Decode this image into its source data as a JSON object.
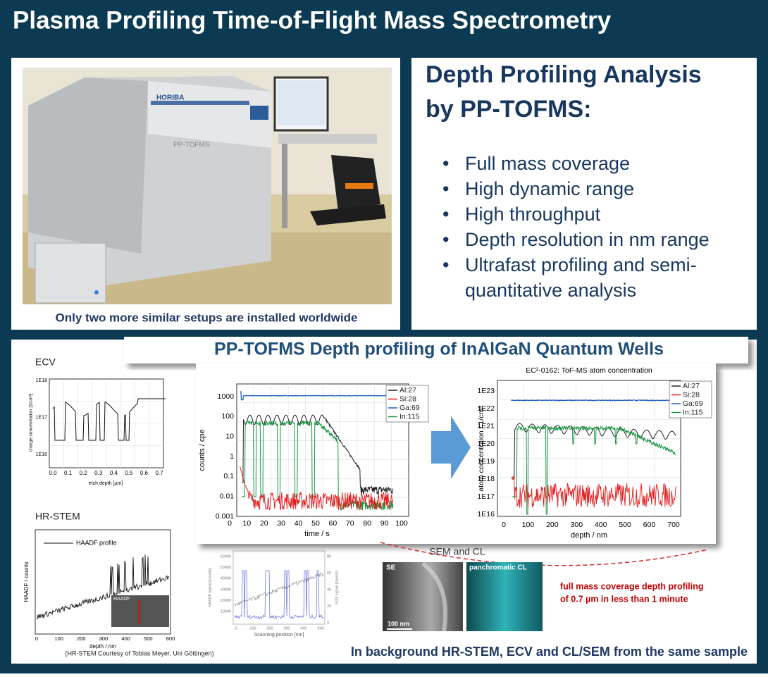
{
  "header": {
    "title": "Plasma Profiling Time-of-Flight Mass Spectrometry"
  },
  "photo": {
    "brand": "HORIBA",
    "model": "PP-TOFMS",
    "caption": "Only two more similar setups are installed worldwide"
  },
  "analysis": {
    "title_lines": [
      "Depth Profiling Analysis",
      "by PP-TOFMS:"
    ],
    "bullets": [
      "Full mass coverage",
      "High dynamic range",
      "High throughput",
      "Depth resolution in nm range",
      "Ultrafast profiling and semi-quantitative analysis"
    ]
  },
  "results": {
    "title": "PP-TOFMS Depth profiling of InAlGaN Quantum Wells",
    "counts_chart": {
      "ylabel": "counts / cpe",
      "xlabel": "time / s",
      "yticks": [
        1000,
        100,
        10,
        1,
        0.1,
        0.01,
        0.001
      ],
      "xticks": [
        0,
        10,
        20,
        30,
        40,
        50,
        60,
        70,
        80,
        90,
        100
      ],
      "legend": [
        "Al:27",
        "Si:28",
        "Ga:69",
        "In:115"
      ]
    },
    "conc_chart": {
      "title": "EC²-0162: ToF-MS atom concentration",
      "ylabel": "atom concentraion / 1/cm³",
      "xlabel": "depth / nm",
      "yticks": [
        "1E23",
        "1E22",
        "1E21",
        "1E20",
        "1E19",
        "1E18",
        "1E17",
        "1E16"
      ],
      "xticks": [
        0,
        100,
        200,
        300,
        400,
        500,
        600,
        700
      ],
      "legend": [
        "Al:27",
        "Si:28",
        "Ga:69",
        "In:115"
      ]
    },
    "ecv": {
      "label": "ECV",
      "ylabel": "charge concentration [1/cm³]",
      "xlabel": "etch depth [µm]",
      "yticks": [
        "1E18",
        "1E17",
        "1E16"
      ],
      "xticks": [
        "0.0",
        "0.1",
        "0.2",
        "0.3",
        "0.4",
        "0.5",
        "0.6",
        "0.7"
      ]
    },
    "hrstem": {
      "label": "HR-STEM",
      "legend": "HAADF profile",
      "ylabel": "HAADF / counts",
      "xlabel": "depth / nm",
      "xticks": [
        0,
        100,
        200,
        300,
        400,
        500,
        600
      ],
      "inset": "HAADF",
      "credit": "(HR-STEM Courtesy of Tobias Meyer, Uni Göttingen)"
    },
    "edx": {
      "ylabel": "HAADF signal [counts]",
      "y2label": "EDX signal [counts]",
      "xlabel": "Scanning position [nm]",
      "yticks": [
        60000,
        50000,
        40000,
        30000,
        20000,
        10000
      ],
      "y2ticks": [
        80,
        60,
        40,
        20,
        0
      ],
      "xticks": [
        0,
        100,
        200,
        300,
        400,
        500
      ]
    },
    "sem_cl": {
      "label": "SEM and CL",
      "se": "SE",
      "cl": "panchromatic CL",
      "scale": "100 nm"
    },
    "highlight_lines": [
      "full mass coverage depth profiling",
      "of 0.7 µm in less than 1 minute"
    ],
    "footer": "In background HR-STEM, ECV and CL/SEM from the same sample"
  }
}
